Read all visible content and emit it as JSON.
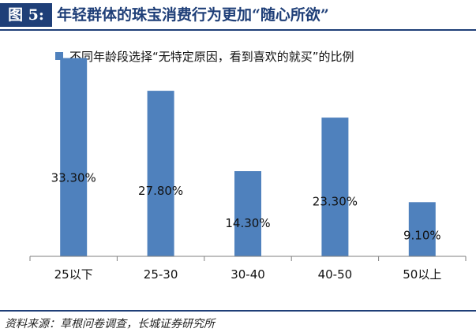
{
  "header": {
    "figure_tag": "图 5:",
    "title": "年轻群体的珠宝消费行为更加“随心所欲”"
  },
  "footer": {
    "source": "资料来源：草根问卷调查，长城证券研究所"
  },
  "colors": {
    "bar": "#4f81bd",
    "axis": "#7f7f7f",
    "title": "#1f3f78"
  },
  "chart_data": {
    "type": "bar",
    "title": "",
    "xlabel": "",
    "ylabel": "",
    "categories": [
      "25以下",
      "25-30",
      "30-40",
      "40-50",
      "50以上"
    ],
    "series": [
      {
        "name": "不同年龄段选择“无特定原因，看到喜欢的就买”的比例",
        "values": [
          33.3,
          27.8,
          14.3,
          23.3,
          9.1
        ],
        "labels": [
          "33.30%",
          "27.80%",
          "14.30%",
          "23.30%",
          "9.10%"
        ]
      }
    ],
    "ylim": [
      0,
      35
    ],
    "grid": false,
    "legend": "top"
  }
}
